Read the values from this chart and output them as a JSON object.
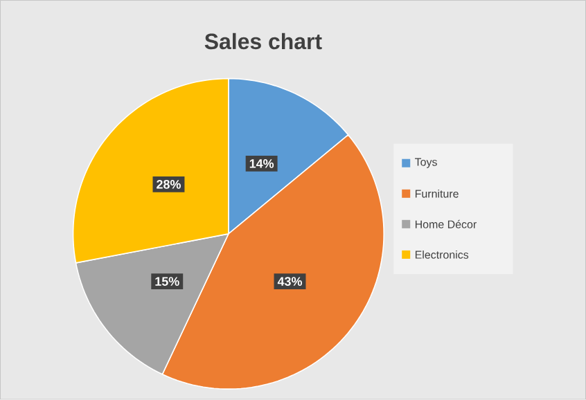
{
  "chart_data": {
    "type": "pie",
    "title": "Sales chart",
    "categories": [
      "Toys",
      "Furniture",
      "Home Décor",
      "Electronics"
    ],
    "values": [
      14,
      43,
      15,
      28
    ],
    "value_labels": [
      "14%",
      "43%",
      "15%",
      "28%"
    ],
    "colors": [
      "#5b9bd5",
      "#ed7d31",
      "#a5a5a5",
      "#ffc000"
    ],
    "legend": "right"
  }
}
